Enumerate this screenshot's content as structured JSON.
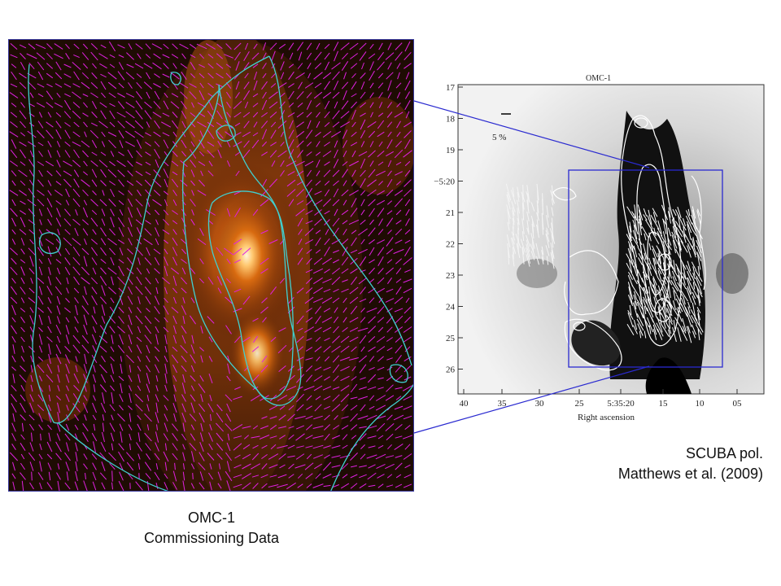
{
  "left_image": {
    "caption_line1": "OMC-1",
    "caption_line2": "Commissioning Data",
    "colors": {
      "vectors": "#e020e0",
      "contours": "#40d0d0",
      "emission_core": "#ffe08a",
      "background": "#1a0a02"
    }
  },
  "right_image": {
    "plot_title": "OMC-1",
    "scale_label": "5 %",
    "xlabel": "Right ascension",
    "x_ticks": [
      "40",
      "35",
      "30",
      "25",
      "5:35:20",
      "15",
      "10",
      "05"
    ],
    "y_ticks": [
      "17",
      "18",
      "19",
      "−5:20",
      "21",
      "22",
      "23",
      "24",
      "25",
      "26"
    ],
    "colors": {
      "zoom_box": "#2a2ad0",
      "contours": "#ffffff"
    }
  },
  "captions": {
    "right_line1": "SCUBA pol.",
    "right_line2": "Matthews et al.  (2009)"
  }
}
